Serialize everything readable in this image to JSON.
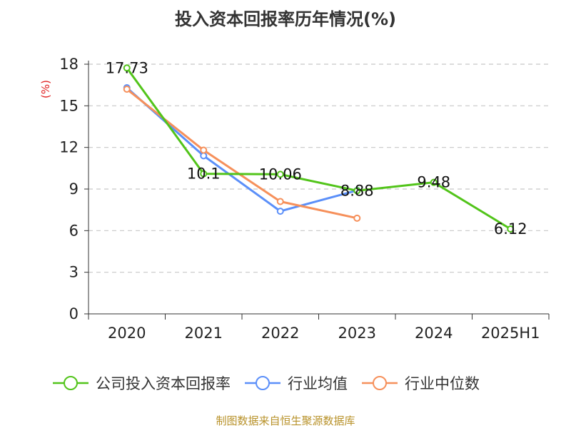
{
  "chart_data": {
    "type": "line",
    "title": "投入资本回报率历年情况(%)",
    "ylabel": "(%)",
    "xlabel": "",
    "categories": [
      "2020",
      "2021",
      "2022",
      "2023",
      "2024",
      "2025H1"
    ],
    "ylim": [
      0,
      18
    ],
    "yticks": [
      0,
      3,
      6,
      9,
      12,
      15,
      18
    ],
    "grid": true,
    "legend_position": "bottom",
    "series": [
      {
        "name": "公司投入资本回报率",
        "color": "#52c41a",
        "values": [
          17.73,
          10.1,
          10.06,
          8.88,
          9.48,
          6.12
        ],
        "labels": [
          "17.73",
          "10.1",
          "10.06",
          "8.88",
          "9.48",
          "6.12"
        ]
      },
      {
        "name": "行业均值",
        "color": "#5b8ff9",
        "values": [
          16.3,
          11.4,
          7.4,
          8.9,
          null,
          null
        ]
      },
      {
        "name": "行业中位数",
        "color": "#f6905b",
        "values": [
          16.2,
          11.8,
          8.1,
          6.9,
          null,
          null
        ]
      }
    ]
  },
  "source": "制图数据来自恒生聚源数据库"
}
